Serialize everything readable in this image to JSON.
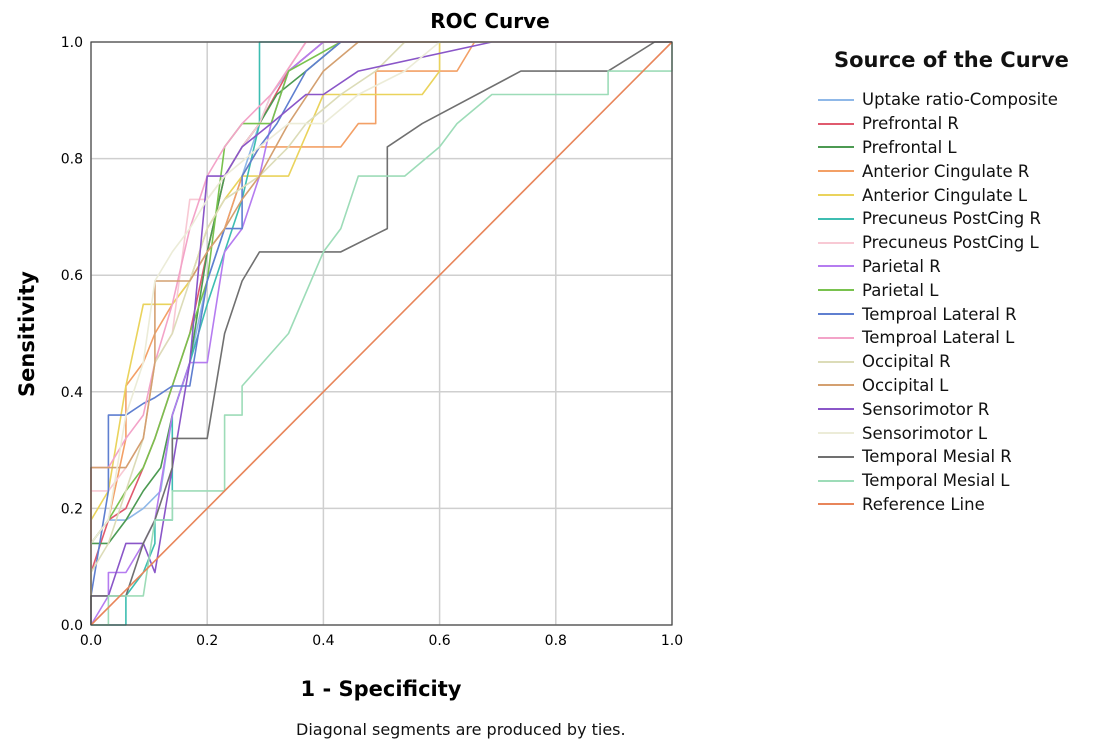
{
  "chart_data": {
    "type": "line",
    "title": "ROC Curve",
    "xlabel": "1 - Specificity",
    "ylabel": "Sensitivity",
    "xlim": [
      0,
      1
    ],
    "ylim": [
      0,
      1
    ],
    "xticks": [
      "0.0",
      "0.2",
      "0.4",
      "0.6",
      "0.8",
      "1.0"
    ],
    "yticks": [
      "0.0",
      "0.2",
      "0.4",
      "0.6",
      "0.8",
      "1.0"
    ],
    "grid": true,
    "legend_position": "right",
    "legend_title": "Source of the Curve",
    "series": [
      {
        "name": "Uptake ratio-Composite",
        "color": "#8fb8e8",
        "points": [
          [
            0,
            0
          ],
          [
            0,
            0.14
          ],
          [
            0.03,
            0.18
          ],
          [
            0.06,
            0.18
          ],
          [
            0.09,
            0.2
          ],
          [
            0.12,
            0.23
          ],
          [
            0.14,
            0.36
          ],
          [
            0.17,
            0.45
          ],
          [
            0.2,
            0.59
          ],
          [
            0.23,
            0.68
          ],
          [
            0.26,
            0.77
          ],
          [
            0.29,
            0.86
          ],
          [
            0.31,
            0.91
          ],
          [
            0.34,
            0.95
          ],
          [
            0.4,
            1
          ],
          [
            1,
            1
          ]
        ]
      },
      {
        "name": "Prefrontal R",
        "color": "#e05a6e",
        "points": [
          [
            0,
            0
          ],
          [
            0,
            0.09
          ],
          [
            0.03,
            0.18
          ],
          [
            0.06,
            0.2
          ],
          [
            0.09,
            0.27
          ],
          [
            0.11,
            0.32
          ],
          [
            0.14,
            0.41
          ],
          [
            0.17,
            0.5
          ],
          [
            0.2,
            0.64
          ],
          [
            0.23,
            0.77
          ],
          [
            0.26,
            0.82
          ],
          [
            0.29,
            0.86
          ],
          [
            0.34,
            0.95
          ],
          [
            0.4,
            1
          ],
          [
            1,
            1
          ]
        ]
      },
      {
        "name": "Prefrontal L",
        "color": "#4c9a52",
        "points": [
          [
            0,
            0
          ],
          [
            0,
            0.14
          ],
          [
            0.03,
            0.14
          ],
          [
            0.06,
            0.18
          ],
          [
            0.09,
            0.23
          ],
          [
            0.12,
            0.27
          ],
          [
            0.14,
            0.36
          ],
          [
            0.17,
            0.45
          ],
          [
            0.2,
            0.64
          ],
          [
            0.23,
            0.77
          ],
          [
            0.26,
            0.82
          ],
          [
            0.29,
            0.86
          ],
          [
            0.32,
            0.91
          ],
          [
            0.37,
            0.95
          ],
          [
            0.43,
            1
          ],
          [
            1,
            1
          ]
        ]
      },
      {
        "name": "Anterior Cingulate R",
        "color": "#f3a066",
        "points": [
          [
            0,
            0
          ],
          [
            0,
            0.14
          ],
          [
            0.03,
            0.18
          ],
          [
            0.06,
            0.32
          ],
          [
            0.06,
            0.41
          ],
          [
            0.09,
            0.45
          ],
          [
            0.11,
            0.5
          ],
          [
            0.14,
            0.55
          ],
          [
            0.17,
            0.59
          ],
          [
            0.2,
            0.64
          ],
          [
            0.23,
            0.68
          ],
          [
            0.26,
            0.77
          ],
          [
            0.29,
            0.82
          ],
          [
            0.4,
            0.82
          ],
          [
            0.43,
            0.82
          ],
          [
            0.46,
            0.86
          ],
          [
            0.49,
            0.86
          ],
          [
            0.49,
            0.95
          ],
          [
            0.63,
            0.95
          ],
          [
            0.66,
            1
          ],
          [
            1,
            1
          ]
        ]
      },
      {
        "name": "Anterior Cingulate L",
        "color": "#ead35c",
        "points": [
          [
            0,
            0
          ],
          [
            0,
            0.18
          ],
          [
            0.03,
            0.23
          ],
          [
            0.06,
            0.41
          ],
          [
            0.09,
            0.55
          ],
          [
            0.11,
            0.55
          ],
          [
            0.14,
            0.55
          ],
          [
            0.17,
            0.59
          ],
          [
            0.2,
            0.68
          ],
          [
            0.23,
            0.73
          ],
          [
            0.26,
            0.77
          ],
          [
            0.34,
            0.77
          ],
          [
            0.4,
            0.91
          ],
          [
            0.57,
            0.91
          ],
          [
            0.6,
            0.95
          ],
          [
            0.6,
            1
          ],
          [
            1,
            1
          ]
        ]
      },
      {
        "name": "Precuneus PostCing R",
        "color": "#3dbdb1",
        "points": [
          [
            0,
            0
          ],
          [
            0.03,
            0
          ],
          [
            0.06,
            0
          ],
          [
            0.06,
            0.05
          ],
          [
            0.09,
            0.09
          ],
          [
            0.11,
            0.14
          ],
          [
            0.11,
            0.18
          ],
          [
            0.14,
            0.18
          ],
          [
            0.14,
            0.36
          ],
          [
            0.17,
            0.45
          ],
          [
            0.2,
            0.55
          ],
          [
            0.23,
            0.64
          ],
          [
            0.26,
            0.73
          ],
          [
            0.29,
            0.86
          ],
          [
            0.29,
            1
          ],
          [
            1,
            1
          ]
        ]
      },
      {
        "name": "Precuneus PostCing L",
        "color": "#f8c9d4",
        "points": [
          [
            0,
            0
          ],
          [
            0,
            0.23
          ],
          [
            0.03,
            0.23
          ],
          [
            0.06,
            0.27
          ],
          [
            0.09,
            0.32
          ],
          [
            0.11,
            0.45
          ],
          [
            0.14,
            0.5
          ],
          [
            0.17,
            0.73
          ],
          [
            0.2,
            0.73
          ],
          [
            0.23,
            0.77
          ],
          [
            0.26,
            0.82
          ],
          [
            0.29,
            0.86
          ],
          [
            0.31,
            0.91
          ],
          [
            0.37,
            1
          ],
          [
            1,
            1
          ]
        ]
      },
      {
        "name": "Parietal R",
        "color": "#b57cf0",
        "points": [
          [
            0,
            0
          ],
          [
            0.03,
            0.05
          ],
          [
            0.03,
            0.09
          ],
          [
            0.06,
            0.09
          ],
          [
            0.09,
            0.14
          ],
          [
            0.11,
            0.18
          ],
          [
            0.14,
            0.36
          ],
          [
            0.17,
            0.45
          ],
          [
            0.2,
            0.45
          ],
          [
            0.23,
            0.64
          ],
          [
            0.26,
            0.68
          ],
          [
            0.29,
            0.77
          ],
          [
            0.31,
            0.86
          ],
          [
            0.34,
            0.95
          ],
          [
            0.4,
            1
          ],
          [
            1,
            1
          ]
        ]
      },
      {
        "name": "Parietal L",
        "color": "#79c24e",
        "points": [
          [
            0,
            0
          ],
          [
            0,
            0.14
          ],
          [
            0.03,
            0.18
          ],
          [
            0.06,
            0.23
          ],
          [
            0.09,
            0.27
          ],
          [
            0.11,
            0.32
          ],
          [
            0.14,
            0.41
          ],
          [
            0.17,
            0.5
          ],
          [
            0.2,
            0.59
          ],
          [
            0.23,
            0.82
          ],
          [
            0.26,
            0.86
          ],
          [
            0.29,
            0.86
          ],
          [
            0.31,
            0.86
          ],
          [
            0.34,
            0.95
          ],
          [
            0.43,
            1
          ],
          [
            1,
            1
          ]
        ]
      },
      {
        "name": "Temproal Lateral R",
        "color": "#5f7fd0",
        "points": [
          [
            0,
            0
          ],
          [
            0,
            0.05
          ],
          [
            0.03,
            0.23
          ],
          [
            0.03,
            0.36
          ],
          [
            0.06,
            0.36
          ],
          [
            0.09,
            0.38
          ],
          [
            0.11,
            0.39
          ],
          [
            0.14,
            0.41
          ],
          [
            0.17,
            0.41
          ],
          [
            0.2,
            0.59
          ],
          [
            0.23,
            0.68
          ],
          [
            0.26,
            0.68
          ],
          [
            0.26,
            0.77
          ],
          [
            0.29,
            0.82
          ],
          [
            0.32,
            0.86
          ],
          [
            0.37,
            0.95
          ],
          [
            0.43,
            1
          ],
          [
            1,
            1
          ]
        ]
      },
      {
        "name": "Temproal Lateral L",
        "color": "#f3a3c8",
        "points": [
          [
            0,
            0
          ],
          [
            0,
            0.27
          ],
          [
            0.03,
            0.27
          ],
          [
            0.06,
            0.32
          ],
          [
            0.09,
            0.36
          ],
          [
            0.11,
            0.45
          ],
          [
            0.14,
            0.55
          ],
          [
            0.17,
            0.68
          ],
          [
            0.2,
            0.77
          ],
          [
            0.23,
            0.82
          ],
          [
            0.26,
            0.86
          ],
          [
            0.31,
            0.91
          ],
          [
            0.37,
            1
          ],
          [
            1,
            1
          ]
        ]
      },
      {
        "name": "Occipital R",
        "color": "#dcdcb8",
        "points": [
          [
            0,
            0
          ],
          [
            0,
            0.09
          ],
          [
            0.03,
            0.14
          ],
          [
            0.06,
            0.23
          ],
          [
            0.09,
            0.32
          ],
          [
            0.11,
            0.45
          ],
          [
            0.14,
            0.5
          ],
          [
            0.17,
            0.59
          ],
          [
            0.2,
            0.68
          ],
          [
            0.23,
            0.73
          ],
          [
            0.29,
            0.77
          ],
          [
            0.34,
            0.82
          ],
          [
            0.37,
            0.86
          ],
          [
            0.43,
            0.91
          ],
          [
            0.49,
            0.95
          ],
          [
            0.54,
            1
          ],
          [
            1,
            1
          ]
        ]
      },
      {
        "name": "Occipital L",
        "color": "#d4a070",
        "points": [
          [
            0,
            0
          ],
          [
            0,
            0.27
          ],
          [
            0.03,
            0.27
          ],
          [
            0.06,
            0.27
          ],
          [
            0.09,
            0.32
          ],
          [
            0.11,
            0.45
          ],
          [
            0.11,
            0.59
          ],
          [
            0.14,
            0.59
          ],
          [
            0.17,
            0.59
          ],
          [
            0.2,
            0.64
          ],
          [
            0.23,
            0.68
          ],
          [
            0.26,
            0.73
          ],
          [
            0.29,
            0.77
          ],
          [
            0.34,
            0.86
          ],
          [
            0.4,
            0.95
          ],
          [
            0.46,
            1
          ],
          [
            1,
            1
          ]
        ]
      },
      {
        "name": "Sensorimotor R",
        "color": "#8a56c8",
        "points": [
          [
            0,
            0
          ],
          [
            0,
            0.05
          ],
          [
            0.03,
            0.05
          ],
          [
            0.06,
            0.14
          ],
          [
            0.09,
            0.14
          ],
          [
            0.11,
            0.09
          ],
          [
            0.11,
            0.09
          ],
          [
            0.14,
            0.27
          ],
          [
            0.17,
            0.45
          ],
          [
            0.2,
            0.77
          ],
          [
            0.23,
            0.77
          ],
          [
            0.26,
            0.82
          ],
          [
            0.31,
            0.86
          ],
          [
            0.37,
            0.91
          ],
          [
            0.4,
            0.91
          ],
          [
            0.46,
            0.95
          ],
          [
            0.69,
            1
          ],
          [
            1,
            1
          ]
        ]
      },
      {
        "name": "Sensorimotor L",
        "color": "#ececd8",
        "points": [
          [
            0,
            0
          ],
          [
            0,
            0.14
          ],
          [
            0.03,
            0.18
          ],
          [
            0.06,
            0.36
          ],
          [
            0.09,
            0.45
          ],
          [
            0.11,
            0.59
          ],
          [
            0.14,
            0.64
          ],
          [
            0.17,
            0.68
          ],
          [
            0.2,
            0.73
          ],
          [
            0.23,
            0.77
          ],
          [
            0.29,
            0.82
          ],
          [
            0.34,
            0.86
          ],
          [
            0.4,
            0.86
          ],
          [
            0.46,
            0.91
          ],
          [
            0.54,
            0.95
          ],
          [
            0.6,
            1
          ],
          [
            1,
            1
          ]
        ]
      },
      {
        "name": "Temporal Mesial R",
        "color": "#707070",
        "points": [
          [
            0,
            0
          ],
          [
            0,
            0.05
          ],
          [
            0.03,
            0.05
          ],
          [
            0.06,
            0.05
          ],
          [
            0.09,
            0.14
          ],
          [
            0.11,
            0.18
          ],
          [
            0.14,
            0.27
          ],
          [
            0.14,
            0.32
          ],
          [
            0.2,
            0.32
          ],
          [
            0.23,
            0.5
          ],
          [
            0.26,
            0.59
          ],
          [
            0.29,
            0.64
          ],
          [
            0.43,
            0.64
          ],
          [
            0.51,
            0.68
          ],
          [
            0.51,
            0.82
          ],
          [
            0.57,
            0.86
          ],
          [
            0.74,
            0.95
          ],
          [
            0.89,
            0.95
          ],
          [
            0.97,
            1
          ],
          [
            1,
            1
          ]
        ]
      },
      {
        "name": "Temporal Mesial L",
        "color": "#9ddcb8",
        "points": [
          [
            0,
            0
          ],
          [
            0.03,
            0
          ],
          [
            0.03,
            0.05
          ],
          [
            0.09,
            0.05
          ],
          [
            0.11,
            0.18
          ],
          [
            0.14,
            0.18
          ],
          [
            0.14,
            0.23
          ],
          [
            0.23,
            0.23
          ],
          [
            0.23,
            0.36
          ],
          [
            0.26,
            0.36
          ],
          [
            0.26,
            0.41
          ],
          [
            0.34,
            0.5
          ],
          [
            0.4,
            0.64
          ],
          [
            0.43,
            0.68
          ],
          [
            0.46,
            0.77
          ],
          [
            0.54,
            0.77
          ],
          [
            0.6,
            0.82
          ],
          [
            0.63,
            0.86
          ],
          [
            0.69,
            0.91
          ],
          [
            0.89,
            0.91
          ],
          [
            0.89,
            0.95
          ],
          [
            1,
            0.95
          ],
          [
            1,
            1
          ]
        ]
      },
      {
        "name": "Reference Line",
        "color": "#e8855a",
        "points": [
          [
            0,
            0
          ],
          [
            1,
            1
          ]
        ]
      }
    ]
  },
  "footnote": "Diagonal segments are produced by ties."
}
